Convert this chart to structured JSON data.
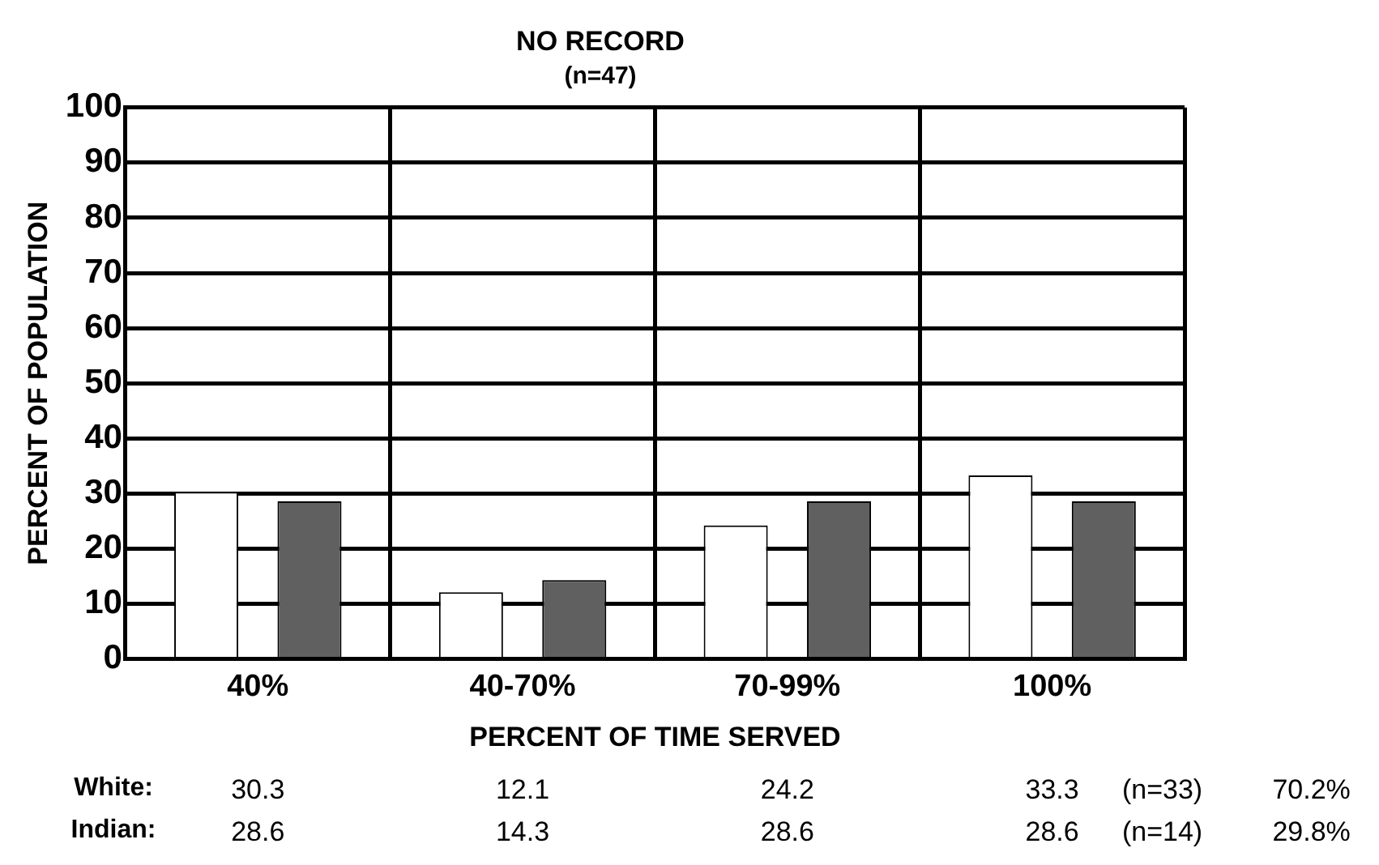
{
  "chart_data": {
    "type": "bar",
    "title": "NO RECORD",
    "subtitle": "(n=47)",
    "xlabel": "PERCENT OF TIME SERVED",
    "ylabel": "PERCENT OF POPULATION",
    "categories": [
      "40%",
      "40-70%",
      "70-99%",
      "100%"
    ],
    "series": [
      {
        "color": "#ffffff",
        "values": [
          30.3,
          12.1,
          24.2,
          33.3
        ]
      },
      {
        "color": "#606060",
        "values": [
          28.6,
          14.3,
          28.6,
          28.6
        ]
      }
    ],
    "ylim": [
      0,
      100
    ],
    "yticks": [
      0,
      10,
      20,
      30,
      40,
      50,
      60,
      70,
      80,
      90,
      100
    ],
    "grid": true,
    "legend": false,
    "data_labels": true,
    "annotations": [
      "White:",
      "(n=33)",
      "70.2%",
      "Indian:",
      "(n=14)",
      "29.8%"
    ]
  }
}
